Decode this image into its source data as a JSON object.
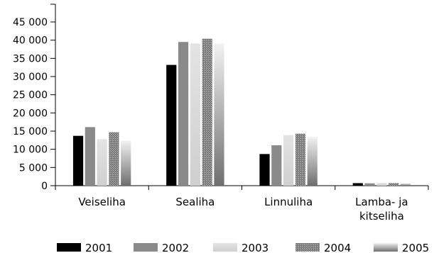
{
  "chart_data": {
    "type": "bar",
    "title": "",
    "xlabel": "",
    "ylabel": "",
    "ylim": [
      0,
      45000
    ],
    "yticks": [
      0,
      5000,
      10000,
      15000,
      20000,
      25000,
      30000,
      35000,
      40000,
      45000
    ],
    "ytick_labels": [
      "0",
      "5 000",
      "10 000",
      "15 000",
      "20 000",
      "25 000",
      "30 000",
      "35 000",
      "40 000",
      "45 000"
    ],
    "grid": false,
    "legend_position": "bottom",
    "categories": [
      [
        "Veiseliha"
      ],
      [
        "Sealiha"
      ],
      [
        "Linnuliha"
      ],
      [
        "Lamba- ja",
        "kitseliha"
      ]
    ],
    "series": [
      {
        "name": "2001",
        "color": "#000000",
        "values": [
          13700,
          33200,
          8700,
          700
        ]
      },
      {
        "name": "2002",
        "color": "#8a8a8a",
        "values": [
          16100,
          39500,
          11100,
          650
        ]
      },
      {
        "name": "2003",
        "color": "#d6d6d6",
        "values": [
          12800,
          39100,
          13900,
          750
        ]
      },
      {
        "name": "2004",
        "color": "#a3a3a3",
        "values": [
          14700,
          40400,
          14300,
          700
        ]
      },
      {
        "name": "2005",
        "color": "#c0c0c0",
        "values": [
          12400,
          39100,
          13400,
          650
        ]
      }
    ]
  }
}
